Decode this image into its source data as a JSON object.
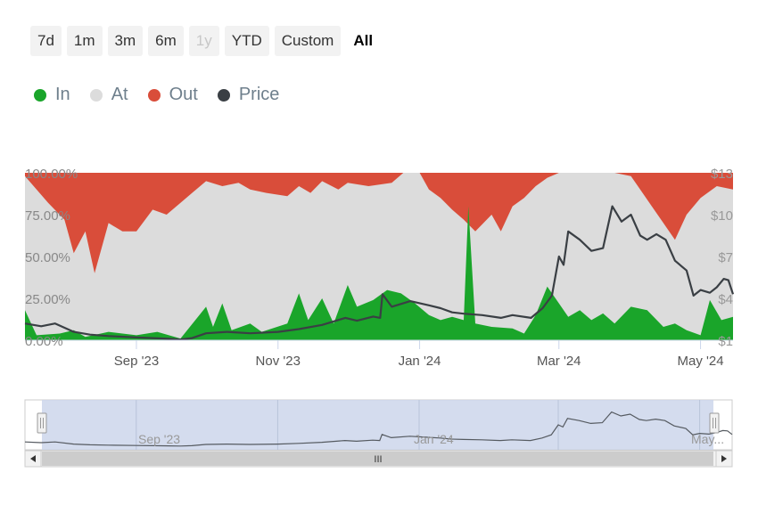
{
  "range_selector": {
    "buttons": [
      {
        "label": "7d",
        "state": "normal"
      },
      {
        "label": "1m",
        "state": "normal"
      },
      {
        "label": "3m",
        "state": "normal"
      },
      {
        "label": "6m",
        "state": "normal"
      },
      {
        "label": "1y",
        "state": "disabled"
      },
      {
        "label": "YTD",
        "state": "normal"
      },
      {
        "label": "Custom",
        "state": "normal"
      },
      {
        "label": "All",
        "state": "selected"
      }
    ]
  },
  "legend": [
    {
      "label": "In",
      "color": "#1aa52a"
    },
    {
      "label": "At",
      "color": "#dcdcdc"
    },
    {
      "label": "Out",
      "color": "#d94d3a"
    },
    {
      "label": "Price",
      "color": "#3a3f44"
    }
  ],
  "navigator": {
    "labels": [
      "Sep '23",
      "Jan '24",
      "May..."
    ],
    "scrollbar_grip": "III"
  },
  "chart_data": {
    "type": "area",
    "stacking": "percent",
    "x_start": "2023-07-15",
    "x_end": "2024-05-15",
    "x_ticks": [
      {
        "date": "2023-09-01",
        "label": "Sep '23"
      },
      {
        "date": "2023-11-01",
        "label": "Nov '23"
      },
      {
        "date": "2024-01-01",
        "label": "Jan '24"
      },
      {
        "date": "2024-03-01",
        "label": "Mar '24"
      },
      {
        "date": "2024-05-01",
        "label": "May '24"
      }
    ],
    "y_left": {
      "ticks": [
        0,
        25,
        50,
        75,
        100
      ],
      "labels": [
        "0.00%",
        "25.00%",
        "50.00%",
        "75.00%",
        "100.00%"
      ],
      "ylim": [
        0,
        100
      ]
    },
    "y_right": {
      "ticks": [
        1,
        4,
        7,
        10,
        13
      ],
      "labels": [
        "$1",
        "$4",
        "$7",
        "$10",
        "$13"
      ],
      "ylim": [
        1,
        13
      ]
    },
    "series": [
      {
        "name": "In",
        "color": "#1aa52a",
        "points": [
          [
            "2023-07-15",
            18
          ],
          [
            "2023-07-20",
            3
          ],
          [
            "2023-07-30",
            4
          ],
          [
            "2023-08-05",
            6
          ],
          [
            "2023-08-10",
            2
          ],
          [
            "2023-08-20",
            5
          ],
          [
            "2023-09-01",
            3
          ],
          [
            "2023-09-10",
            5
          ],
          [
            "2023-09-20",
            1
          ],
          [
            "2023-10-01",
            20
          ],
          [
            "2023-10-04",
            8
          ],
          [
            "2023-10-08",
            22
          ],
          [
            "2023-10-12",
            6
          ],
          [
            "2023-10-20",
            10
          ],
          [
            "2023-10-25",
            5
          ],
          [
            "2023-11-05",
            10
          ],
          [
            "2023-11-10",
            28
          ],
          [
            "2023-11-14",
            12
          ],
          [
            "2023-11-20",
            25
          ],
          [
            "2023-11-25",
            10
          ],
          [
            "2023-12-01",
            33
          ],
          [
            "2023-12-05",
            20
          ],
          [
            "2023-12-12",
            24
          ],
          [
            "2023-12-18",
            30
          ],
          [
            "2023-12-24",
            28
          ],
          [
            "2023-12-30",
            22
          ],
          [
            "2024-01-05",
            15
          ],
          [
            "2024-01-10",
            12
          ],
          [
            "2024-01-15",
            14
          ],
          [
            "2024-01-20",
            12
          ],
          [
            "2024-01-22",
            80
          ],
          [
            "2024-01-25",
            10
          ],
          [
            "2024-02-01",
            8
          ],
          [
            "2024-02-10",
            7
          ],
          [
            "2024-02-15",
            4
          ],
          [
            "2024-02-20",
            15
          ],
          [
            "2024-02-25",
            32
          ],
          [
            "2024-03-01",
            22
          ],
          [
            "2024-03-05",
            14
          ],
          [
            "2024-03-10",
            18
          ],
          [
            "2024-03-15",
            12
          ],
          [
            "2024-03-20",
            16
          ],
          [
            "2024-03-25",
            10
          ],
          [
            "2024-04-01",
            20
          ],
          [
            "2024-04-08",
            18
          ],
          [
            "2024-04-15",
            8
          ],
          [
            "2024-04-20",
            10
          ],
          [
            "2024-04-25",
            6
          ],
          [
            "2024-05-01",
            3
          ],
          [
            "2024-05-05",
            24
          ],
          [
            "2024-05-10",
            12
          ],
          [
            "2024-05-15",
            14
          ]
        ]
      },
      {
        "name": "Out",
        "color": "#d94d3a",
        "points": [
          [
            "2023-07-15",
            2
          ],
          [
            "2023-07-20",
            10
          ],
          [
            "2023-07-25",
            18
          ],
          [
            "2023-08-01",
            28
          ],
          [
            "2023-08-05",
            48
          ],
          [
            "2023-08-10",
            35
          ],
          [
            "2023-08-14",
            60
          ],
          [
            "2023-08-20",
            30
          ],
          [
            "2023-08-26",
            35
          ],
          [
            "2023-09-01",
            35
          ],
          [
            "2023-09-08",
            22
          ],
          [
            "2023-09-14",
            25
          ],
          [
            "2023-09-20",
            18
          ],
          [
            "2023-09-25",
            12
          ],
          [
            "2023-10-01",
            5
          ],
          [
            "2023-10-08",
            8
          ],
          [
            "2023-10-15",
            6
          ],
          [
            "2023-10-20",
            10
          ],
          [
            "2023-10-27",
            12
          ],
          [
            "2023-11-05",
            14
          ],
          [
            "2023-11-10",
            8
          ],
          [
            "2023-11-15",
            12
          ],
          [
            "2023-11-20",
            5
          ],
          [
            "2023-11-27",
            10
          ],
          [
            "2023-12-01",
            6
          ],
          [
            "2023-12-10",
            8
          ],
          [
            "2023-12-20",
            6
          ],
          [
            "2023-12-25",
            0
          ],
          [
            "2024-01-01",
            0
          ],
          [
            "2024-01-05",
            10
          ],
          [
            "2024-01-10",
            15
          ],
          [
            "2024-01-15",
            22
          ],
          [
            "2024-01-20",
            28
          ],
          [
            "2024-01-25",
            35
          ],
          [
            "2024-02-01",
            25
          ],
          [
            "2024-02-05",
            35
          ],
          [
            "2024-02-10",
            20
          ],
          [
            "2024-02-15",
            15
          ],
          [
            "2024-02-20",
            8
          ],
          [
            "2024-02-25",
            3
          ],
          [
            "2024-03-01",
            0
          ],
          [
            "2024-03-15",
            0
          ],
          [
            "2024-03-25",
            0
          ],
          [
            "2024-04-01",
            2
          ],
          [
            "2024-04-05",
            10
          ],
          [
            "2024-04-10",
            20
          ],
          [
            "2024-04-15",
            30
          ],
          [
            "2024-04-20",
            40
          ],
          [
            "2024-04-25",
            25
          ],
          [
            "2024-05-01",
            15
          ],
          [
            "2024-05-08",
            8
          ],
          [
            "2024-05-15",
            10
          ]
        ]
      },
      {
        "name": "Price",
        "color": "#3a3f44",
        "axis": "right",
        "points": [
          [
            "2023-07-15",
            2.2
          ],
          [
            "2023-07-22",
            2.0
          ],
          [
            "2023-07-28",
            2.2
          ],
          [
            "2023-08-05",
            1.6
          ],
          [
            "2023-08-12",
            1.4
          ],
          [
            "2023-08-20",
            1.3
          ],
          [
            "2023-09-01",
            1.2
          ],
          [
            "2023-09-15",
            1.1
          ],
          [
            "2023-09-20",
            1.05
          ],
          [
            "2023-09-25",
            1.15
          ],
          [
            "2023-10-01",
            1.5
          ],
          [
            "2023-10-10",
            1.6
          ],
          [
            "2023-10-20",
            1.5
          ],
          [
            "2023-11-01",
            1.6
          ],
          [
            "2023-11-10",
            1.8
          ],
          [
            "2023-11-20",
            2.1
          ],
          [
            "2023-11-30",
            2.6
          ],
          [
            "2023-12-05",
            2.4
          ],
          [
            "2023-12-12",
            2.7
          ],
          [
            "2023-12-15",
            2.6
          ],
          [
            "2023-12-16",
            4.3
          ],
          [
            "2023-12-20",
            3.4
          ],
          [
            "2023-12-28",
            3.8
          ],
          [
            "2024-01-05",
            3.5
          ],
          [
            "2024-01-10",
            3.3
          ],
          [
            "2024-01-15",
            3.0
          ],
          [
            "2024-01-20",
            2.9
          ],
          [
            "2024-01-28",
            2.8
          ],
          [
            "2024-02-05",
            2.6
          ],
          [
            "2024-02-10",
            2.8
          ],
          [
            "2024-02-18",
            2.6
          ],
          [
            "2024-02-23",
            3.3
          ],
          [
            "2024-02-27",
            4.2
          ],
          [
            "2024-03-01",
            7.0
          ],
          [
            "2024-03-03",
            6.4
          ],
          [
            "2024-03-05",
            8.8
          ],
          [
            "2024-03-10",
            8.2
          ],
          [
            "2024-03-15",
            7.4
          ],
          [
            "2024-03-20",
            7.6
          ],
          [
            "2024-03-24",
            10.6
          ],
          [
            "2024-03-28",
            9.5
          ],
          [
            "2024-04-01",
            10.0
          ],
          [
            "2024-04-05",
            8.5
          ],
          [
            "2024-04-08",
            8.2
          ],
          [
            "2024-04-12",
            8.6
          ],
          [
            "2024-04-16",
            8.2
          ],
          [
            "2024-04-20",
            6.7
          ],
          [
            "2024-04-25",
            6.0
          ],
          [
            "2024-04-28",
            4.2
          ],
          [
            "2024-05-01",
            4.6
          ],
          [
            "2024-05-05",
            4.4
          ],
          [
            "2024-05-08",
            4.8
          ],
          [
            "2024-05-11",
            5.4
          ],
          [
            "2024-05-13",
            5.3
          ],
          [
            "2024-05-15",
            4.3
          ]
        ]
      }
    ]
  }
}
